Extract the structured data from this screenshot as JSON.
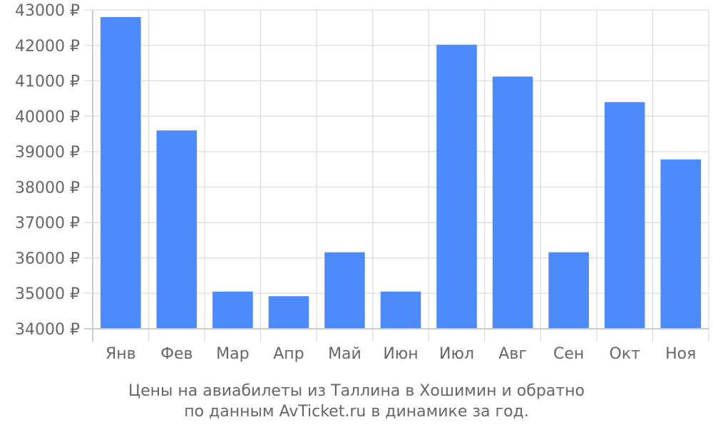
{
  "chart_data": {
    "type": "bar",
    "categories": [
      "Янв",
      "Фев",
      "Мар",
      "Апр",
      "Май",
      "Июн",
      "Июл",
      "Авг",
      "Сен",
      "Окт",
      "Ноя"
    ],
    "values": [
      42800,
      39600,
      35050,
      34920,
      36160,
      35050,
      42020,
      41120,
      36160,
      40400,
      38780
    ],
    "ylim": [
      34000,
      43000
    ],
    "yticks": [
      "34000 ₽",
      "35000 ₽",
      "36000 ₽",
      "37000 ₽",
      "38000 ₽",
      "39000 ₽",
      "40000 ₽",
      "41000 ₽",
      "42000 ₽",
      "43000 ₽"
    ],
    "caption_lines": [
      "Цены на авиабилеты из Таллина в Хошимин и обратно",
      "по данным AvTicket.ru в динамике за год."
    ],
    "bar_color": "#4d8afc",
    "grid": true
  }
}
